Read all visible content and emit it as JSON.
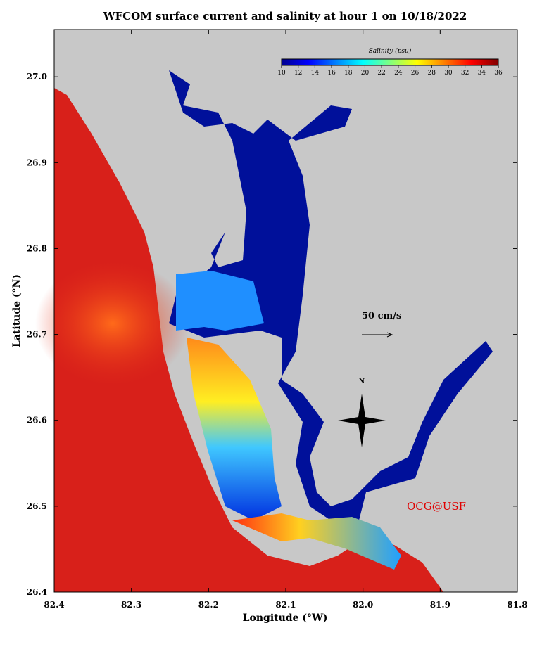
{
  "chart_data": {
    "type": "map",
    "title": "WFCOM surface current and salinity at hour  1 on 10/18/2022",
    "x_label": "Longitude (°W)",
    "y_label": "Latitude (°N)",
    "xlim": [
      82.4,
      81.8
    ],
    "xticks": [
      82.4,
      82.3,
      82.2,
      82.1,
      {
        "value": 82,
        "label": "82.0"
      },
      81.9,
      81.8
    ],
    "ylim": [
      26.4,
      27.055
    ],
    "yticks": [
      26.4,
      26.5,
      26.6,
      26.7,
      26.8,
      26.9,
      {
        "value": 27,
        "label": "27.0"
      }
    ],
    "colorbar": {
      "title": "Salinity (psu)",
      "lim": [
        10,
        36
      ],
      "ticks": [
        10,
        12,
        14,
        16,
        18,
        20,
        22,
        24,
        26,
        28,
        30,
        32,
        34,
        36
      ],
      "colors": [
        "#00008f",
        "#0000ff",
        "#0080ff",
        "#00ffff",
        "#80ff80",
        "#ffff00",
        "#ff8000",
        "#ff0000",
        "#800000"
      ]
    },
    "annotations": {
      "scale": "50 cm/s",
      "north": "N",
      "credit": "OCG@USF"
    }
  }
}
